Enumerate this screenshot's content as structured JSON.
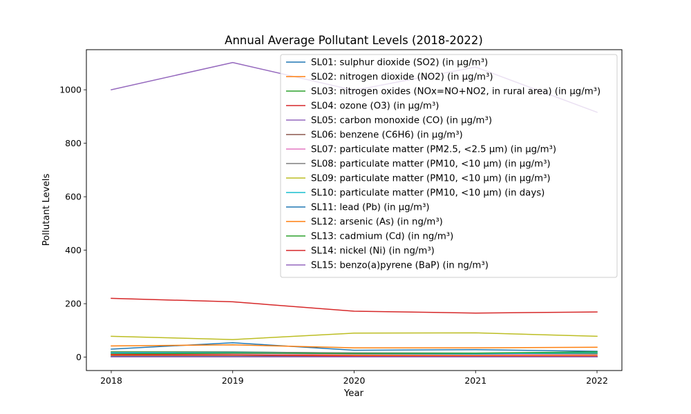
{
  "chart_data": {
    "type": "line",
    "title": "Annual Average Pollutant Levels (2018-2022)",
    "xlabel": "Year",
    "ylabel": "Pollutant Levels",
    "x": [
      "2018",
      "2019",
      "2020",
      "2021",
      "2022"
    ],
    "yticks": [
      "0",
      "200",
      "400",
      "600",
      "800",
      "1000"
    ],
    "ylim": [
      -50,
      1150
    ],
    "grid": false,
    "legend_position": "top-right",
    "series": [
      {
        "name": "SL01: sulphur dioxide (SO2) (in µg/m³)",
        "color": "#1f77b4",
        "values": [
          30,
          54,
          26,
          28,
          22
        ]
      },
      {
        "name": "SL02: nitrogen dioxide (NO2) (in µg/m³)",
        "color": "#ff7f0e",
        "values": [
          42,
          46,
          35,
          35,
          37
        ]
      },
      {
        "name": "SL03: nitrogen oxides (NOx=NO+NO2, in rural area) (in µg/m³)",
        "color": "#2ca02c",
        "values": [
          20,
          20,
          15,
          14,
          13
        ]
      },
      {
        "name": "SL04: ozone (O3) (in µg/m³)",
        "color": "#d62728",
        "values": [
          220,
          207,
          172,
          165,
          169
        ]
      },
      {
        "name": "SL05: carbon monoxide (CO) (in µg/m³)",
        "color": "#9467bd",
        "values": [
          1000,
          1102,
          998,
          1085,
          916
        ]
      },
      {
        "name": "SL06: benzene (C6H6) (in µg/m³)",
        "color": "#8c564b",
        "values": [
          5,
          4,
          3,
          3,
          2
        ]
      },
      {
        "name": "SL07: particulate matter (PM2.5, <2.5 µm) (in µg/m³)",
        "color": "#e377c2",
        "values": [
          12,
          14,
          10,
          10,
          9
        ]
      },
      {
        "name": "SL08: particulate matter (PM10, <10 µm) (in µg/m³)",
        "color": "#7f7f7f",
        "values": [
          18,
          19,
          16,
          15,
          15
        ]
      },
      {
        "name": "SL09: particulate matter (PM10, <10 µm) (in µg/m³)",
        "color": "#bcbd22",
        "values": [
          78,
          66,
          90,
          91,
          78
        ]
      },
      {
        "name": "SL10: particulate matter (PM10, <10 µm) (in days)",
        "color": "#17becf",
        "values": [
          16,
          17,
          13,
          12,
          17
        ]
      },
      {
        "name": "SL11: lead (Pb) (in µg/m³)",
        "color": "#1f77b4",
        "values": [
          2,
          2,
          1,
          1,
          1
        ]
      },
      {
        "name": "SL12: arsenic (As) (in ng/m³)",
        "color": "#ff7f0e",
        "values": [
          8,
          8,
          7,
          6,
          6
        ]
      },
      {
        "name": "SL13: cadmium (Cd) (in ng/m³)",
        "color": "#2ca02c",
        "values": [
          12,
          15,
          14,
          15,
          20
        ]
      },
      {
        "name": "SL14: nickel (Ni) (in ng/m³)",
        "color": "#d62728",
        "values": [
          10,
          9,
          4,
          3,
          3
        ]
      },
      {
        "name": "SL15: benzo(a)pyrene (BaP) (in ng/m³)",
        "color": "#9467bd",
        "values": [
          1,
          1,
          1,
          1,
          1
        ]
      }
    ]
  }
}
